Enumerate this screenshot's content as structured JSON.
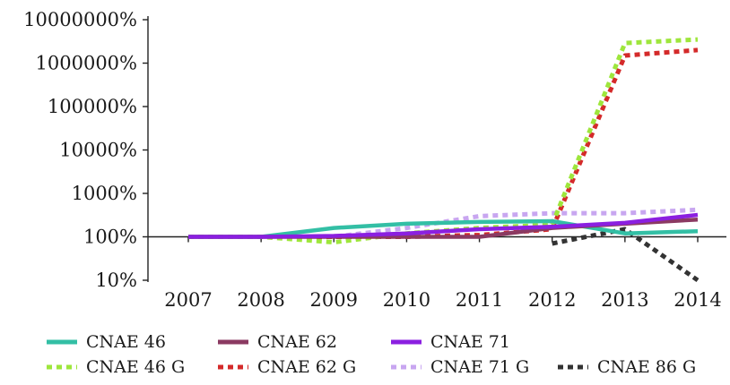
{
  "chart_data": {
    "type": "line",
    "title": "",
    "xlabel": "",
    "ylabel": "",
    "y_scale": "log",
    "ylim": [
      10,
      10000000
    ],
    "x": [
      "2007",
      "2008",
      "2009",
      "2010",
      "2011",
      "2012",
      "2013",
      "2014"
    ],
    "y_tick_labels": [
      "10%",
      "100%",
      "1000%",
      "10000%",
      "100000%",
      "1000000%",
      "10000000%"
    ],
    "grid": false,
    "legend_position": "bottom",
    "series": [
      {
        "name": "CNAE 46",
        "color": "#33bfa5",
        "dash": "solid",
        "values": [
          100,
          100,
          160,
          200,
          220,
          230,
          120,
          135
        ]
      },
      {
        "name": "CNAE 62",
        "color": "#8b3a62",
        "dash": "solid",
        "values": [
          100,
          100,
          100,
          100,
          100,
          160,
          200,
          250
        ]
      },
      {
        "name": "CNAE 71",
        "color": "#8b1fe0",
        "dash": "solid",
        "values": [
          100,
          100,
          105,
          120,
          150,
          170,
          210,
          320
        ]
      },
      {
        "name": "CNAE 46 G",
        "color": "#9ee63c",
        "dash": "dotted",
        "values": [
          100,
          100,
          75,
          120,
          160,
          190,
          2900000,
          3500000
        ]
      },
      {
        "name": "CNAE 62 G",
        "color": "#d42a2a",
        "dash": "dotted",
        "values": [
          100,
          100,
          100,
          100,
          110,
          150,
          1500000,
          2000000
        ]
      },
      {
        "name": "CNAE 71 G",
        "color": "#c8a6f0",
        "dash": "dotted",
        "values": [
          100,
          100,
          100,
          160,
          300,
          350,
          350,
          420
        ]
      },
      {
        "name": "CNAE 86 G",
        "color": "#333333",
        "dash": "dotted",
        "values": [
          null,
          null,
          null,
          null,
          null,
          70,
          150,
          10
        ]
      }
    ]
  }
}
